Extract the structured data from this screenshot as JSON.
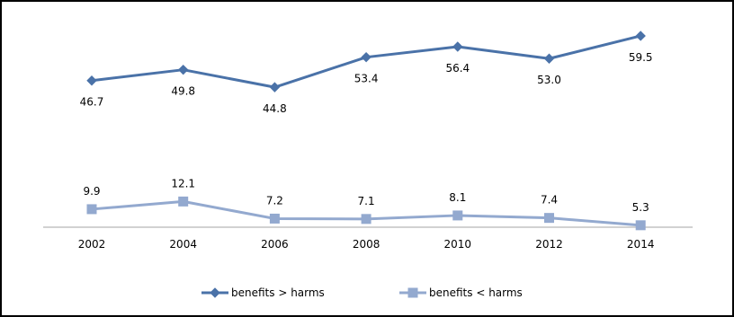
{
  "chart_data": {
    "type": "line",
    "title": "",
    "xlabel": "",
    "ylabel": "",
    "categories": [
      "2002",
      "2004",
      "2006",
      "2008",
      "2010",
      "2012",
      "2014"
    ],
    "series": [
      {
        "name": "benefits > harms",
        "values": [
          46.7,
          49.8,
          44.8,
          53.4,
          56.4,
          53.0,
          59.5
        ],
        "labels": [
          "46.7",
          "49.8",
          "44.8",
          "53.4",
          "56.4",
          "53.0",
          "59.5"
        ],
        "color": "#4a72a8",
        "marker": "diamond",
        "label_position": "below"
      },
      {
        "name": "benefits < harms",
        "values": [
          9.9,
          12.1,
          7.2,
          7.1,
          8.1,
          7.4,
          5.3
        ],
        "labels": [
          "9.9",
          "12.1",
          "7.2",
          "7.1",
          "8.1",
          "7.4",
          "5.3"
        ],
        "color": "#93a9cf",
        "marker": "square",
        "label_position": "above"
      }
    ],
    "ylim": [
      5,
      60
    ],
    "grid": false,
    "y_axis_visible": false,
    "legend_position": "bottom"
  }
}
